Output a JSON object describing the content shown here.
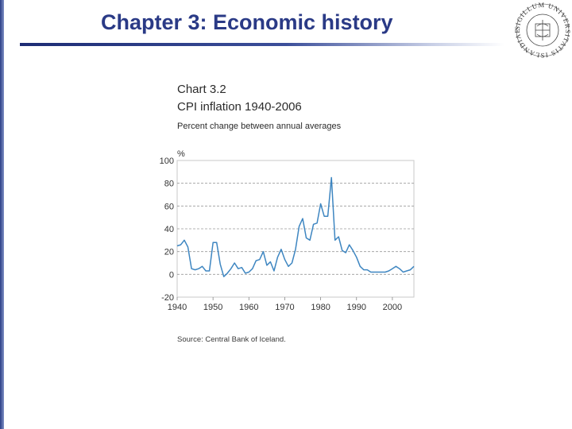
{
  "slide": {
    "title": "Chapter 3: Economic history",
    "seal_text": "SIGILLUM UNIVERSITATIS ISLANDIAE"
  },
  "colors": {
    "title": "#2a3a86",
    "rule": "#1d2c74",
    "line": "#3e86c1",
    "grid": "#9a9a9a",
    "plot_border": "#c8c8c8"
  },
  "chart_data": {
    "type": "line",
    "number": "Chart 3.2",
    "title": "CPI inflation 1940-2006",
    "subtitle": "Percent change between annual averages",
    "ylabel": "%",
    "source": "Source: Central Bank of Iceland.",
    "ylim": [
      -20,
      100
    ],
    "yticks": [
      -20,
      0,
      20,
      40,
      60,
      80,
      100
    ],
    "xlim": [
      1940,
      2006
    ],
    "xticks": [
      1940,
      1950,
      1960,
      1970,
      1980,
      1990,
      2000
    ],
    "grid": "dashed horizontal",
    "series": [
      {
        "x": [
          1940,
          1941,
          1942,
          1943,
          1944,
          1945,
          1946,
          1947,
          1948,
          1949,
          1950,
          1951,
          1952,
          1953,
          1954,
          1955,
          1956,
          1957,
          1958,
          1959,
          1960,
          1961,
          1962,
          1963,
          1964,
          1965,
          1966,
          1967,
          1968,
          1969,
          1970,
          1971,
          1972,
          1973,
          1974,
          1975,
          1976,
          1977,
          1978,
          1979,
          1980,
          1981,
          1982,
          1983,
          1984,
          1985,
          1986,
          1987,
          1988,
          1989,
          1990,
          1991,
          1992,
          1993,
          1994,
          1995,
          1996,
          1997,
          1998,
          1999,
          2000,
          2001,
          2002,
          2003,
          2004,
          2005,
          2006
        ],
        "values": [
          25,
          26,
          30,
          24,
          5,
          4,
          5,
          7,
          3,
          3,
          28,
          28,
          9,
          -2,
          1,
          5,
          10,
          5,
          6,
          1,
          2,
          5,
          12,
          13,
          20,
          8,
          11,
          3,
          15,
          22,
          13,
          7,
          10,
          22,
          42,
          49,
          32,
          30,
          44,
          45,
          62,
          51,
          51,
          85,
          30,
          33,
          21,
          19,
          26,
          21,
          15,
          7,
          4,
          4,
          2,
          2,
          2,
          2,
          2,
          3,
          5,
          7,
          5,
          2,
          3,
          4,
          7
        ]
      }
    ]
  }
}
